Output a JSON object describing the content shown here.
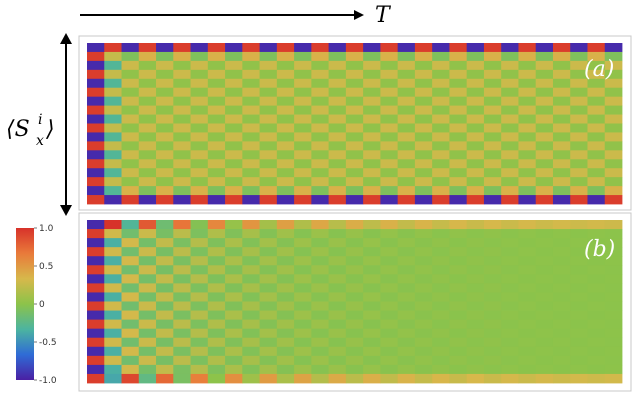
{
  "chart_data": [
    {
      "type": "heatmap",
      "panel_label": "(a)",
      "x_axis_label": "T",
      "y_axis_label": "⟨S_x^i⟩",
      "rows": 18,
      "cols": 31,
      "pattern": "edge rows alternate between +1 and -1 every time step; first column alternates ±1 between sites; interior is a small checkerboard (about ±0.15) that persists across all T"
    },
    {
      "type": "heatmap",
      "panel_label": "(b)",
      "rows": 18,
      "cols": 31,
      "pattern": "edge rows alternate ±1 only near T=0 and decay toward ~0.3 for large T; interior checkerboard decays to ~0"
    }
  ],
  "colorbar": {
    "range": [
      -1.0,
      1.0
    ],
    "tick_labels": [
      "1.0",
      "0.5",
      "0",
      "-0.5",
      "-1.0"
    ],
    "tick_values": [
      1.0,
      0.5,
      0,
      -0.5,
      -1.0
    ],
    "colormap": [
      "#4a1fa3",
      "#2f6bd6",
      "#4cb4a0",
      "#8cc34a",
      "#d7b84b",
      "#e97a3a",
      "#d7322a"
    ]
  },
  "labels": {
    "t_axis": "T",
    "y_main": "⟨S",
    "y_sub": "x",
    "y_sup": "i",
    "y_close": "⟩",
    "panel_a": "(a)",
    "panel_b": "(b)"
  },
  "colors": {
    "frame": "#c8c8c8",
    "label": "#ffffff",
    "arrow": "#000000"
  }
}
